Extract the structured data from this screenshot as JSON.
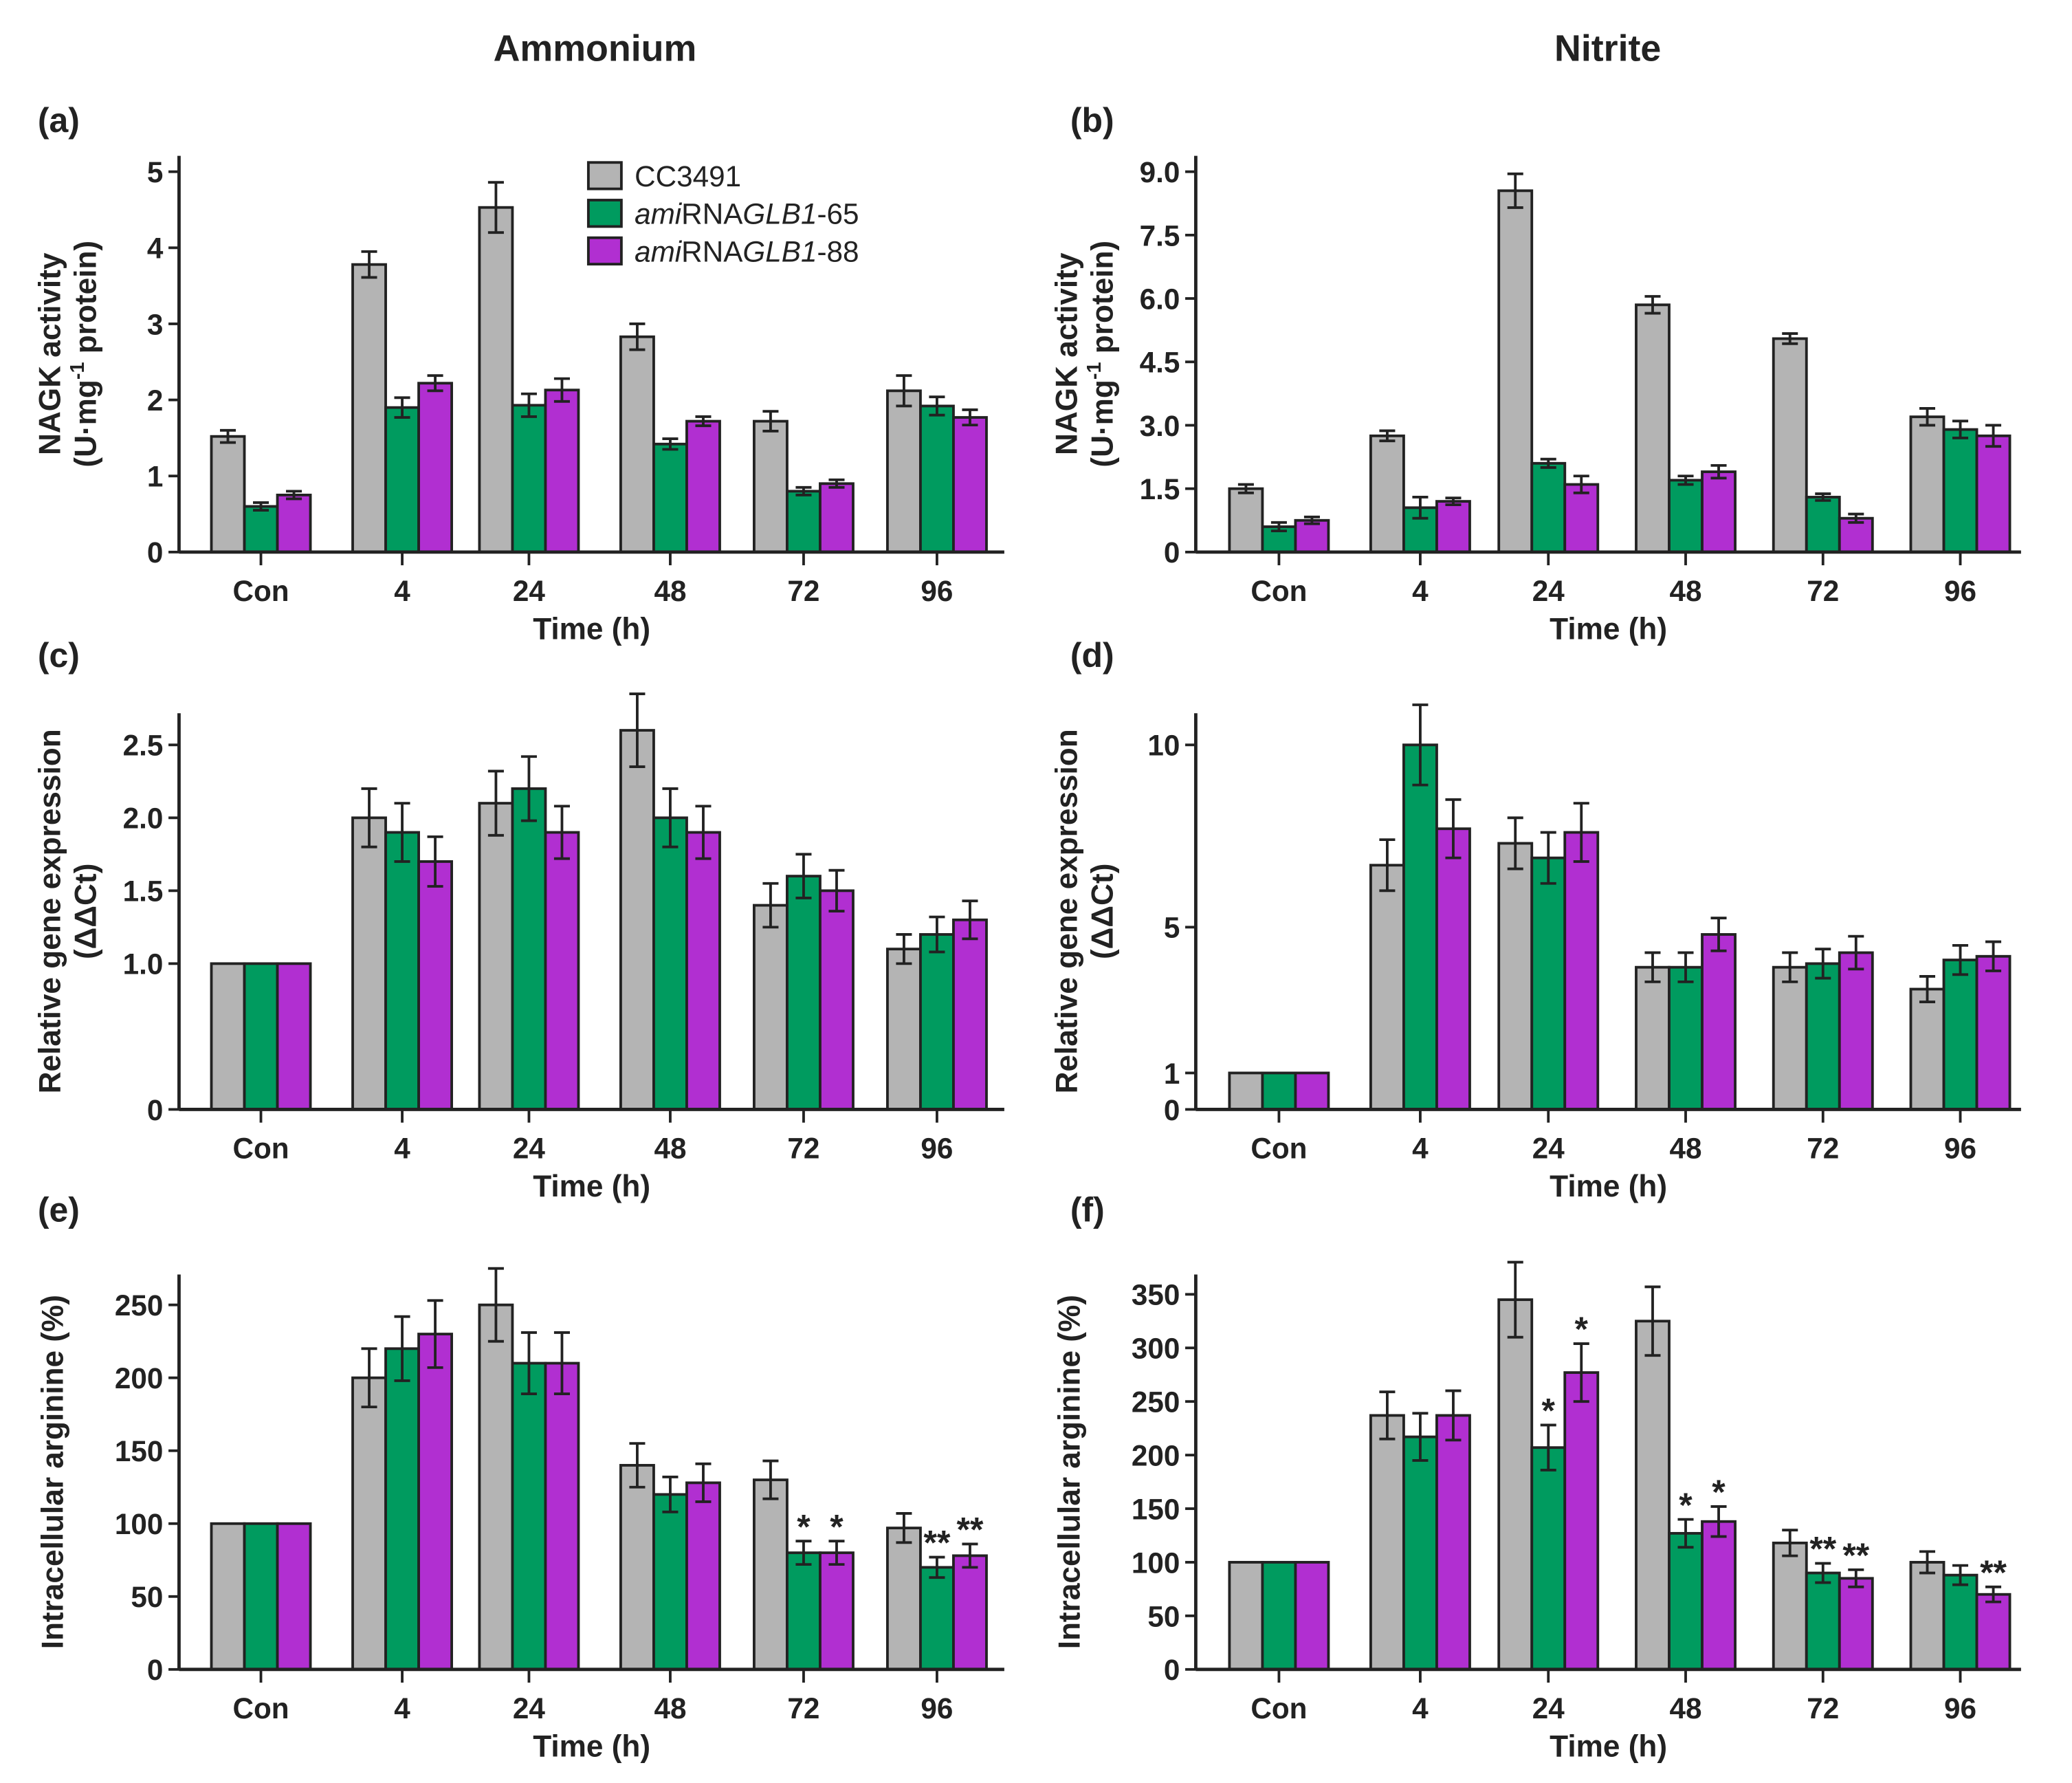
{
  "titles": {
    "left": "Ammonium",
    "right": "Nitrite"
  },
  "colors": {
    "CC3491": "#b4b4b4",
    "amiRNAGLB1-65": "#009b5f",
    "amiRNAGLB1-88": "#b12fd1",
    "axis": "#222222"
  },
  "legend": [
    {
      "parts": [
        {
          "t": "CC3491",
          "i": false
        }
      ]
    },
    {
      "parts": [
        {
          "t": "ami",
          "i": true
        },
        {
          "t": "RNA",
          "i": false
        },
        {
          "t": "GLB1",
          "i": true
        },
        {
          "t": "-65",
          "i": false
        }
      ]
    },
    {
      "parts": [
        {
          "t": "ami",
          "i": true
        },
        {
          "t": "RNA",
          "i": false
        },
        {
          "t": "GLB1",
          "i": true
        },
        {
          "t": "-88",
          "i": false
        }
      ]
    }
  ],
  "chart_data": [
    {
      "panel": "(a)",
      "type": "bar",
      "xlabel": "Time (h)",
      "ylabel": {
        "line1": "NAGK activity",
        "pre": "(U·mg",
        "sup": "-1",
        "post": " protein)"
      },
      "categories": [
        "Con",
        "4",
        "24",
        "48",
        "72",
        "96"
      ],
      "ylim": [
        0,
        5
      ],
      "yticks": [
        "0",
        "1",
        "2",
        "3",
        "4",
        "5"
      ],
      "ytickvals": [
        0,
        1,
        2,
        3,
        4,
        5
      ],
      "series": [
        {
          "name": "CC3491",
          "values": [
            1.52,
            3.78,
            4.53,
            2.83,
            1.72,
            2.12
          ],
          "err": [
            0.08,
            0.17,
            0.33,
            0.17,
            0.13,
            0.2
          ]
        },
        {
          "name": "amiRNAGLB1-65",
          "values": [
            0.6,
            1.9,
            1.93,
            1.42,
            0.8,
            1.92
          ],
          "err": [
            0.05,
            0.13,
            0.15,
            0.07,
            0.05,
            0.12
          ]
        },
        {
          "name": "amiRNAGLB1-88",
          "values": [
            0.75,
            2.22,
            2.13,
            1.72,
            0.9,
            1.77
          ],
          "err": [
            0.05,
            0.1,
            0.15,
            0.06,
            0.05,
            0.1
          ]
        }
      ],
      "stars": [
        [],
        [],
        [],
        [],
        [],
        []
      ]
    },
    {
      "panel": "(b)",
      "type": "bar",
      "xlabel": "Time (h)",
      "ylabel": {
        "line1": "NAGK activity",
        "pre": "(U·mg",
        "sup": "-1",
        "post": " protein)"
      },
      "categories": [
        "Con",
        "4",
        "24",
        "48",
        "72",
        "96"
      ],
      "ylim": [
        0,
        9
      ],
      "yticks": [
        "0",
        "1.5",
        "3.0",
        "4.5",
        "6.0",
        "7.5",
        "9.0"
      ],
      "ytickvals": [
        0,
        1.5,
        3,
        4.5,
        6,
        7.5,
        9
      ],
      "series": [
        {
          "name": "CC3491",
          "values": [
            1.5,
            2.75,
            8.55,
            5.85,
            5.05,
            3.2
          ],
          "err": [
            0.1,
            0.12,
            0.4,
            0.2,
            0.12,
            0.2
          ]
        },
        {
          "name": "amiRNAGLB1-65",
          "values": [
            0.6,
            1.05,
            2.1,
            1.7,
            1.3,
            2.9
          ],
          "err": [
            0.1,
            0.25,
            0.1,
            0.1,
            0.08,
            0.2
          ]
        },
        {
          "name": "amiRNAGLB1-88",
          "values": [
            0.75,
            1.2,
            1.6,
            1.9,
            0.8,
            2.75
          ],
          "err": [
            0.08,
            0.08,
            0.2,
            0.15,
            0.1,
            0.25
          ]
        }
      ],
      "stars": [
        [],
        [],
        [],
        [],
        [],
        []
      ]
    },
    {
      "panel": "(c)",
      "type": "bar",
      "xlabel": "Time (h)",
      "ylabel": {
        "line1": "Relative gene expression",
        "pre": "(ΔΔCt)",
        "sup": "",
        "post": ""
      },
      "categories": [
        "Con",
        "4",
        "24",
        "48",
        "72",
        "96"
      ],
      "ylim": [
        0,
        2.5
      ],
      "yticks": [
        "0",
        "1.0",
        "1.5",
        "2.0",
        "2.5"
      ],
      "ytickvals": [
        0,
        1,
        1.5,
        2,
        2.5
      ],
      "series": [
        {
          "name": "CC3491",
          "values": [
            1,
            2.0,
            2.1,
            2.6,
            1.4,
            1.1
          ],
          "err": [
            0,
            0.2,
            0.22,
            0.25,
            0.15,
            0.1
          ]
        },
        {
          "name": "amiRNAGLB1-65",
          "values": [
            1,
            1.9,
            2.2,
            2.0,
            1.6,
            1.2
          ],
          "err": [
            0,
            0.2,
            0.22,
            0.2,
            0.15,
            0.12
          ]
        },
        {
          "name": "amiRNAGLB1-88",
          "values": [
            1,
            1.7,
            1.9,
            1.9,
            1.5,
            1.3
          ],
          "err": [
            0,
            0.17,
            0.18,
            0.18,
            0.14,
            0.13
          ]
        }
      ],
      "stars": [
        [],
        [],
        [],
        [],
        [],
        []
      ]
    },
    {
      "panel": "(d)",
      "type": "bar",
      "xlabel": "Time (h)",
      "ylabel": {
        "line1": "Relative gene expression",
        "pre": "(ΔΔCt)",
        "sup": "",
        "post": ""
      },
      "categories": [
        "Con",
        "4",
        "24",
        "48",
        "72",
        "96"
      ],
      "ylim": [
        0,
        10
      ],
      "yticks": [
        "0",
        "1",
        "5",
        "10"
      ],
      "ytickvals": [
        0,
        1,
        5,
        10
      ],
      "series": [
        {
          "name": "CC3491",
          "values": [
            1,
            6.7,
            7.3,
            3.9,
            3.9,
            3.3
          ],
          "err": [
            0,
            0.7,
            0.7,
            0.4,
            0.4,
            0.35
          ]
        },
        {
          "name": "amiRNAGLB1-65",
          "values": [
            1,
            10,
            6.9,
            3.9,
            4.0,
            4.1
          ],
          "err": [
            0,
            1.1,
            0.7,
            0.4,
            0.4,
            0.4
          ]
        },
        {
          "name": "amiRNAGLB1-88",
          "values": [
            1,
            7.7,
            7.6,
            4.8,
            4.3,
            4.2
          ],
          "err": [
            0,
            0.8,
            0.8,
            0.45,
            0.45,
            0.4
          ]
        }
      ],
      "stars": [
        [],
        [],
        [],
        [],
        [],
        []
      ]
    },
    {
      "panel": "(e)",
      "type": "bar",
      "xlabel": "Time (h)",
      "ylabel": {
        "line1": "Intracellular arginine (%)",
        "pre": "",
        "sup": "",
        "post": ""
      },
      "categories": [
        "Con",
        "4",
        "24",
        "48",
        "72",
        "96"
      ],
      "ylim": [
        0,
        250
      ],
      "yticks": [
        "0",
        "50",
        "100",
        "150",
        "200",
        "250"
      ],
      "ytickvals": [
        0,
        50,
        100,
        150,
        200,
        250
      ],
      "series": [
        {
          "name": "CC3491",
          "values": [
            100,
            200,
            250,
            140,
            130,
            97
          ],
          "err": [
            0,
            20,
            25,
            15,
            13,
            10
          ]
        },
        {
          "name": "amiRNAGLB1-65",
          "values": [
            100,
            220,
            210,
            120,
            80,
            70
          ],
          "err": [
            0,
            22,
            21,
            12,
            8,
            7
          ]
        },
        {
          "name": "amiRNAGLB1-88",
          "values": [
            100,
            230,
            210,
            128,
            80,
            78
          ],
          "err": [
            0,
            23,
            21,
            13,
            8,
            8
          ]
        }
      ],
      "stars": [
        [
          "",
          "",
          ""
        ],
        [
          "",
          "",
          ""
        ],
        [
          "",
          "",
          ""
        ],
        [
          "",
          "",
          ""
        ],
        [
          "",
          "*",
          "*"
        ],
        [
          "",
          "**",
          "**"
        ]
      ]
    },
    {
      "panel": "(f)",
      "type": "bar",
      "xlabel": "Time (h)",
      "ylabel": {
        "line1": "Intracellular arginine (%)",
        "pre": "",
        "sup": "",
        "post": ""
      },
      "categories": [
        "Con",
        "4",
        "24",
        "48",
        "72",
        "96"
      ],
      "ylim": [
        0,
        350
      ],
      "yticks": [
        "0",
        "50",
        "100",
        "150",
        "200",
        "250",
        "300",
        "350"
      ],
      "ytickvals": [
        0,
        50,
        100,
        150,
        200,
        250,
        300,
        350
      ],
      "series": [
        {
          "name": "CC3491",
          "values": [
            100,
            237,
            345,
            325,
            118,
            100
          ],
          "err": [
            0,
            22,
            35,
            32,
            12,
            10
          ]
        },
        {
          "name": "amiRNAGLB1-65",
          "values": [
            100,
            217,
            207,
            127,
            90,
            88
          ],
          "err": [
            0,
            22,
            21,
            13,
            9,
            9
          ]
        },
        {
          "name": "amiRNAGLB1-88",
          "values": [
            100,
            237,
            277,
            138,
            85,
            70
          ],
          "err": [
            0,
            23,
            27,
            14,
            8,
            7
          ]
        }
      ],
      "stars": [
        [
          "",
          "",
          ""
        ],
        [
          "",
          "",
          ""
        ],
        [
          "",
          "*",
          "*"
        ],
        [
          "",
          "*",
          "*"
        ],
        [
          "",
          "**",
          "**"
        ],
        [
          "",
          "",
          "**"
        ]
      ]
    }
  ]
}
